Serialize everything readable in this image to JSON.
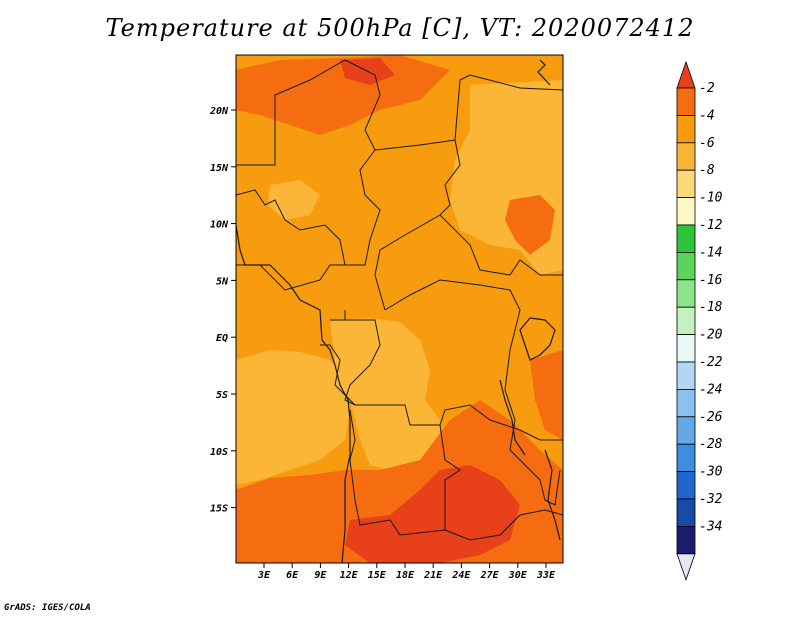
{
  "title": "Temperature at 500hPa [C], VT: 2020072412",
  "credit": "GrADS: IGES/COLA",
  "map": {
    "lat_labels": [
      "20N",
      "15N",
      "10N",
      "5N",
      "EQ",
      "5S",
      "10S",
      "15S"
    ],
    "lon_labels": [
      "3E",
      "6E",
      "9E",
      "12E",
      "15E",
      "18E",
      "21E",
      "24E",
      "27E",
      "30E",
      "33E"
    ],
    "lat_range": [
      -19.5,
      24.7
    ],
    "lon_range": [
      0,
      35
    ]
  },
  "colorbar": {
    "labels": [
      "-2",
      "-4",
      "-6",
      "-8",
      "-10",
      "-12",
      "-14",
      "-16",
      "-18",
      "-20",
      "-22",
      "-24",
      "-26",
      "-28",
      "-30",
      "-32",
      "-34"
    ],
    "colors": [
      "#e8401a",
      "#f56d10",
      "#f89c0f",
      "#fbb638",
      "#fdd97a",
      "#fff8c4",
      "#2fc43a",
      "#5cd35c",
      "#8de38a",
      "#c4f1c0",
      "#e8f8f6",
      "#b3d7f2",
      "#8cc0ee",
      "#64a8e8",
      "#3d8de0",
      "#2266cc",
      "#1a4aa8",
      "#1a1d6e",
      "#e6e6f5"
    ]
  },
  "field_colors": {
    "warm": "#e8401a",
    "hot": "#f56d10",
    "mid": "#f89c0f",
    "cool": "#fbb638"
  }
}
